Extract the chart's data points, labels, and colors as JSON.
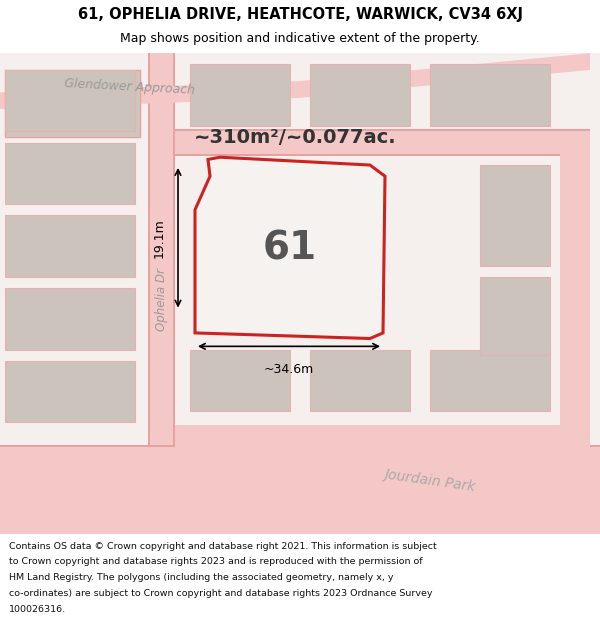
{
  "title_line1": "61, OPHELIA DRIVE, HEATHCOTE, WARWICK, CV34 6XJ",
  "title_line2": "Map shows position and indicative extent of the property.",
  "area_text": "~310m²/~0.077ac.",
  "property_number": "61",
  "dim_width": "~34.6m",
  "dim_height": "19.1m",
  "footer_text": "Contains OS data © Crown copyright and database right 2021. This information is subject to Crown copyright and database rights 2023 and is reproduced with the permission of HM Land Registry. The polygons (including the associated geometry, namely x, y co-ordinates) are subject to Crown copyright and database rights 2023 Ordnance Survey 100026316.",
  "bg_color": "#f0ece8",
  "map_bg": "#f5f0ed",
  "road_color": "#f5c8c8",
  "road_border": "#e8a0a0",
  "highlight_color": "#cc2222",
  "building_fill": "#d8d0c8",
  "building_stroke": "#e8b0b0",
  "street_text_color": "#888888",
  "title_bg": "#ffffff",
  "footer_bg": "#ffffff"
}
